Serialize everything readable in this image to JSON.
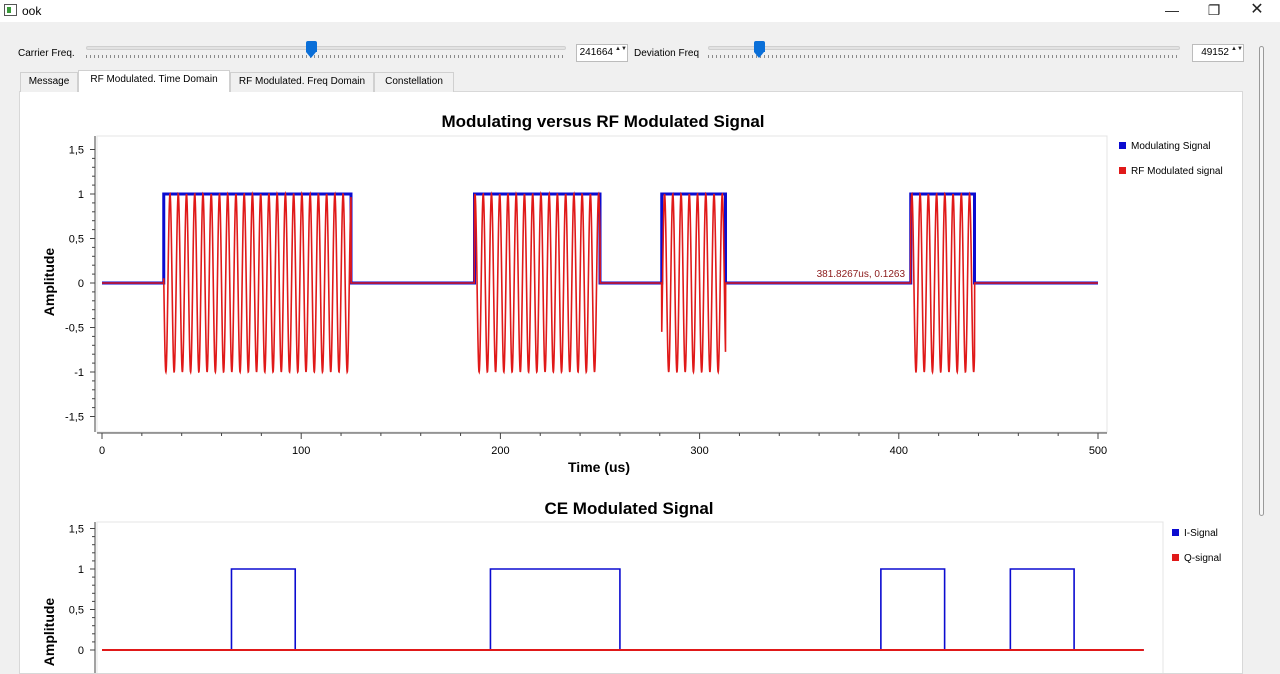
{
  "window": {
    "title": "ook",
    "minimize_glyph": "—",
    "maximize_glyph": "❐",
    "close_glyph": "✕"
  },
  "controls": {
    "carrier_label": "Carrier Freq.",
    "carrier_value": "241664",
    "carrier_slider_fraction": 0.47,
    "deviation_label": "Deviation Freq",
    "deviation_value": "49152",
    "deviation_slider_fraction": 0.1,
    "spin_arrows": "▲▼"
  },
  "tabs": [
    {
      "label": "Message",
      "active": false
    },
    {
      "label": "RF Modulated. Time Domain",
      "active": true
    },
    {
      "label": "RF Modulated. Freq Domain",
      "active": false
    },
    {
      "label": "Constellation",
      "active": false
    }
  ],
  "colors": {
    "blue": "#0b0bd0",
    "red": "#e01919",
    "marker": "#8b1a1a"
  },
  "chart_data": [
    {
      "type": "line",
      "title": "Modulating versus RF Modulated Signal",
      "xlabel": "Time (us)",
      "ylabel": "Amplitude",
      "xlim": [
        0,
        500
      ],
      "ylim": [
        -1.6,
        1.6
      ],
      "xticks": [
        0,
        100,
        200,
        300,
        400,
        500
      ],
      "yticks": [
        1.5,
        1,
        0.5,
        0,
        -0.5,
        -1,
        -1.5
      ],
      "ytick_labels": [
        "1,5",
        "1",
        "0,5",
        "0",
        "-0,5",
        "-1",
        "-1,5"
      ],
      "legend": "right",
      "series": [
        {
          "name": "Modulating Signal",
          "pulses": [
            [
              31,
              125
            ],
            [
              187,
              250
            ],
            [
              281,
              313
            ],
            [
              406,
              438
            ]
          ],
          "high": 1,
          "low": 0
        },
        {
          "name": "RF Modulated signal",
          "kind": "ook-carrier",
          "amplitude": 1,
          "cycles_per_us": 0.241664
        }
      ],
      "annotation": {
        "text": "381.8267us, 0.1263",
        "x": 381.8267,
        "y": 0.1263
      }
    },
    {
      "type": "line",
      "title": "CE Modulated Signal",
      "ylabel": "Amplitude",
      "ylim": [
        -0.4,
        1.5
      ],
      "yticks": [
        1.5,
        1,
        0.5,
        0
      ],
      "ytick_labels": [
        "1,5",
        "1",
        "0,5",
        "0"
      ],
      "legend": "right",
      "series": [
        {
          "name": "I-Signal",
          "pulses": [
            [
              65,
              97
            ],
            [
              195,
              260
            ],
            [
              391,
              423
            ],
            [
              456,
              488
            ]
          ],
          "high": 1,
          "low": 0,
          "x_end": 523
        },
        {
          "name": "Q-signal",
          "constant": 0,
          "x_end": 523
        }
      ]
    }
  ]
}
